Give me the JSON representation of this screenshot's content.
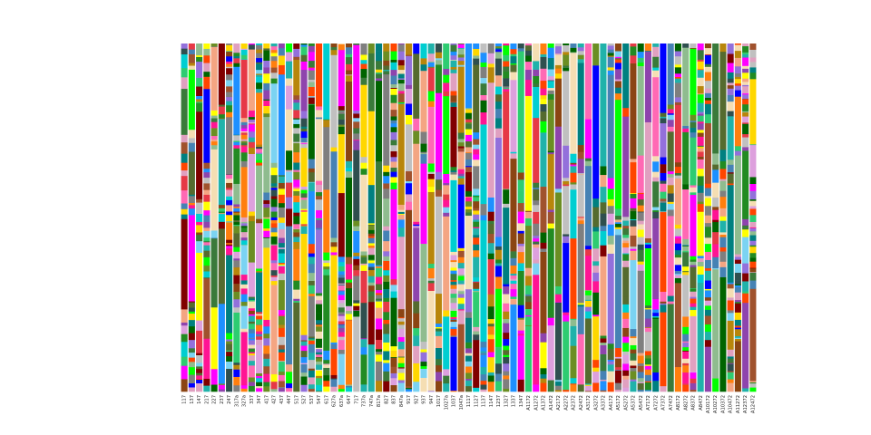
{
  "chart_data": {
    "type": "bar",
    "stacked": true,
    "normalized": true,
    "ylim": [
      0,
      1
    ],
    "title": "",
    "xlabel": "",
    "ylabel": "",
    "legend": "none",
    "grid": false,
    "categories": [
      "117",
      "137",
      "147",
      "217",
      "227",
      "237",
      "247",
      "317a",
      "327a",
      "337",
      "347",
      "417",
      "427",
      "437",
      "447",
      "517",
      "527",
      "537",
      "547",
      "617",
      "627a",
      "637a",
      "647",
      "717",
      "737a",
      "747a",
      "817a",
      "827",
      "837",
      "847a",
      "917",
      "927",
      "937",
      "947",
      "1017",
      "1027a",
      "1037",
      "1047a",
      "1117",
      "1127",
      "1137",
      "1147",
      "1237",
      "1327",
      "1337",
      "1347",
      "A1172",
      "A1272",
      "A1372",
      "A1472",
      "A2172",
      "A2272",
      "A2372",
      "A2472",
      "A3172",
      "A3272",
      "A3372",
      "A4172",
      "A5172",
      "A5272",
      "A5372",
      "A5472",
      "A7172",
      "A7272",
      "A7372",
      "A7472",
      "A8172",
      "A8272",
      "A8372",
      "A8472",
      "A10172",
      "A10272",
      "A10372",
      "A10472",
      "A11272",
      "A12372",
      "A12472"
    ],
    "palette": [
      "#7bd3f2",
      "#3a7a3a",
      "#8e44ad",
      "#0000ff",
      "#e63946",
      "#2ecc71",
      "#f4a582",
      "#7f7f7f",
      "#ff7f0e",
      "#8fbc8f",
      "#a0522d",
      "#00ff00",
      "#ff1493",
      "#6b8e23",
      "#9370db",
      "#c0c0c0",
      "#006400",
      "#f5deb3",
      "#008080",
      "#ffff00",
      "#ff69b4",
      "#4682b4",
      "#228b22",
      "#e0a0c0",
      "#b8860b",
      "#800000",
      "#1e90ff",
      "#dda0dd",
      "#556b2f",
      "#ff4500",
      "#20b2aa",
      "#8b4513",
      "#00ced1",
      "#ff00ff",
      "#2f4f4f",
      "#ffd700"
    ],
    "series_note": "Each bar is the relative composition (fractions summing to 1) of many colored components; values estimated from the image."
  }
}
